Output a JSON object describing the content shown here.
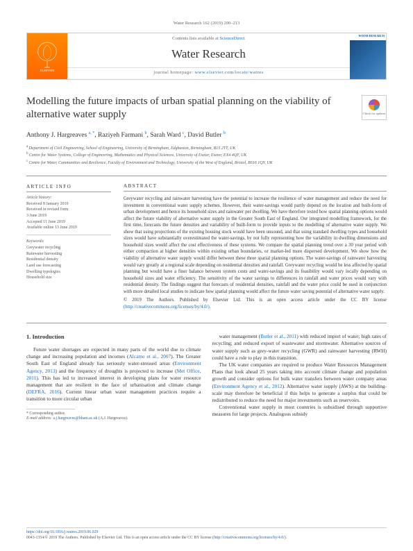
{
  "header": {
    "citation": "Water Research 162 (2019) 200–213",
    "contents_prefix": "Contents lists available at ",
    "contents_link": "ScienceDirect",
    "journal_name": "Water Research",
    "homepage_prefix": "journal homepage: ",
    "homepage_link": "www.elsevier.com/locate/watres",
    "cover_label": "WATER RESEARCH"
  },
  "article": {
    "title": "Modelling the future impacts of urban spatial planning on the viability of alternative water supply",
    "check_updates": "Check for updates",
    "authors_html": "Anthony J. Hargreaves|a, *|, Raziyeh Farmani|b|, Sarah Ward|c|, David Butler|b|",
    "authors": [
      {
        "name": "Anthony J. Hargreaves",
        "sup": "a, *"
      },
      {
        "name": "Raziyeh Farmani",
        "sup": "b"
      },
      {
        "name": "Sarah Ward",
        "sup": "c"
      },
      {
        "name": "David Butler",
        "sup": "b"
      }
    ],
    "affiliations": [
      {
        "sup": "a",
        "text": "Department of Civil Engineering, School of Engineering, University of Birmingham, Edgbaston, Birmingham, B15 2TT, UK"
      },
      {
        "sup": "b",
        "text": "Centre for Water Systems, College of Engineering, Mathematics and Physical Sciences, University of Exeter, Exeter, EX4 4QF, UK"
      },
      {
        "sup": "c",
        "text": "Centre for Water, Communities and Resilience, Faculty of Environment and Technology, University of the West of England, Bristol, BS16 1QY, UK"
      }
    ]
  },
  "info": {
    "heading": "ARTICLE INFO",
    "history_label": "Article history:",
    "history": [
      "Received 8 January 2019",
      "Received in revised form",
      "3 June 2019",
      "Accepted 11 June 2019",
      "Available online 13 June 2019"
    ],
    "keywords_label": "Keywords:",
    "keywords": [
      "Greywater recycling",
      "Rainwater harvesting",
      "Residential density",
      "Land use forecasting",
      "Dwelling typologies",
      "Household size"
    ]
  },
  "abstract": {
    "heading": "ABSTRACT",
    "text": "Greywater recycling and rainwater harvesting have the potential to increase the resilience of water management and reduce the need for investment in conventional water supply schemes. However, their water-savings would partly depend on the location and built-form of urban development and hence its household sizes and rainwater per dwelling. We have therefore tested how spatial planning options would affect the future viability of alternative water supply in the Greater South East of England. Our integrated modelling framework, for the first time, forecasts the future densities and variability of built-form to provide inputs to the modelling of alternative water supply. We show that using projections of the existing housing stock would have been unsound, and that using standard dwelling types and household sizes would have substantially overestimated the water-savings, by not fully representing how the variability in dwelling dimensions and household sizes would affect the cost effectiveness of these systems. We compare the spatial planning trend over a 30 year period with either compaction at higher densities within existing urban boundaries, or market-led more dispersed development. We show how the viability of alternative water supply would differ between these three spatial planning options. The water-savings of rainwater harvesting would vary greatly at a regional scale depending on residential densities and rainfall. Greywater recycling would be less affected by spatial planning but would have a finer balance between system costs and water-savings and its feasibility would vary locally depending on household sizes and water efficiency. The sensitivity of the water savings to differences in rainfall and water prices would vary with residential density. The findings suggest that forecasts of residential densities, rainfall and the water price could be used in conjunction with more detailed local studies to indicate how spatial planning would affect the future water saving potential of alternative water supply.",
    "license": "© 2019 The Authors. Published by Elsevier Ltd. This is an open access article under the CC BY license",
    "license_link": "(http://creativecommons.org/licenses/by/4.0/)."
  },
  "body": {
    "section_number": "1.",
    "section_title": "Introduction",
    "col1_p1": "Future water shortages are expected in many parts of the world due to climate change and increasing population and incomes (Alcamo et al., 2007). The Greater South East of England already has seriously water-stressed areas (Environment Agency, 2013) and the frequency of droughts is projected to increase (Met Office, 2011). This has led to increased interest in developing plans for water resource management that are resilient in the face of urbanisation and climate change (DEFRA, 2016). Current linear urban water management practices require a transition to more circular urban",
    "col2_p1": "water management (Butler et al., 2011) with reduced import of water; high rates of recycling; and reduced export of wastewater and stormwater. Alternative sources of water supply such as grey-water recycling (GWR) and rainwater harvesting (RWH) could have a role to play in this transition.",
    "col2_p2": "The UK water companies are required to produce Water Resources Management Plans that look ahead 25 years taking into account climate change and population growth and consider options for bulk water transfers between water company areas (Environment Agency et al., 2012). Alternative water supply (AWS) at the building-scale may therefore be beneficial if this helps to generate a surplus that could be redistributed to reduce the need for major investments such as reservoirs.",
    "col2_p3": "Conventional water supply in most countries is subsidised through supportive measures for large projects. Analogous subsidy"
  },
  "footnotes": {
    "corresponding": "* Corresponding author.",
    "email_label": "E-mail address: ",
    "email": "a.j.hargreaves@bham.ac.uk",
    "email_suffix": " (A.J. Hargreaves)."
  },
  "footer": {
    "doi": "https://doi.org/10.1016/j.watres.2019.06.029",
    "copyright": "0043-1354/© 2019 The Authors. Published by Elsevier Ltd. This is an open access article under the CC BY license (",
    "cc_link": "http://creativecommons.org/licenses/by/4.0/",
    "copyright_suffix": ")."
  }
}
